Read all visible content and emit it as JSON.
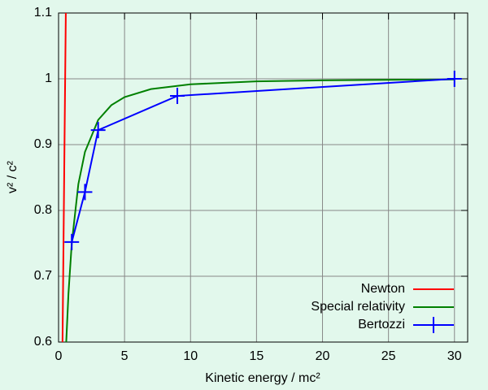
{
  "chart_data": {
    "type": "line",
    "x_label": "Kinetic energy / mc²",
    "y_label": "v² / c²",
    "xlim": [
      0,
      31
    ],
    "ylim": [
      0.6,
      1.1
    ],
    "xticks": [
      0,
      5,
      10,
      15,
      20,
      25,
      30
    ],
    "yticks": [
      0.6,
      0.7,
      0.8,
      0.9,
      1,
      1.1
    ],
    "grid": true,
    "legend": "lower right",
    "series": [
      {
        "name": "Newton",
        "color": "#ff0000",
        "x": [
          0.3,
          0.55
        ],
        "values": [
          0.6,
          1.1
        ]
      },
      {
        "name": "Special relativity",
        "color": "#008000",
        "x": [
          0.58,
          0.75,
          1,
          1.5,
          2,
          3,
          4,
          5,
          7,
          10,
          15,
          20,
          25,
          30
        ],
        "values": [
          0.5994,
          0.6735,
          0.75,
          0.84,
          0.8889,
          0.9375,
          0.96,
          0.9722,
          0.9844,
          0.9917,
          0.9961,
          0.9977,
          0.9985,
          0.999
        ]
      },
      {
        "name": "Bertozzi",
        "color": "#0000ff",
        "markers": true,
        "x": [
          1,
          2,
          3,
          9,
          30
        ],
        "values": [
          0.752,
          0.828,
          0.922,
          0.974,
          1.0
        ]
      }
    ]
  }
}
